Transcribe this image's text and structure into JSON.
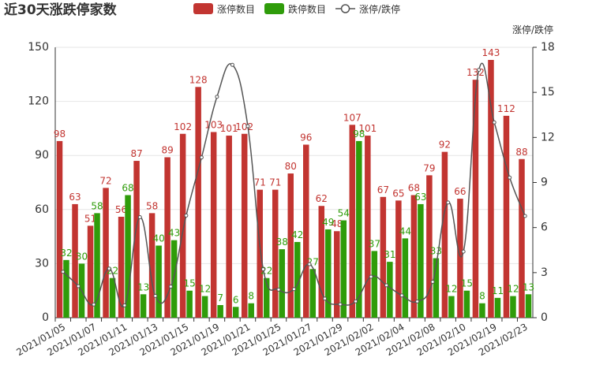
{
  "chart_data": {
    "type": "bar-line",
    "title": "近30天涨跌停家数",
    "y2_label": "涨停/跌停",
    "categories": [
      "2021/01/05",
      null,
      "2021/01/07",
      null,
      "2021/01/11",
      null,
      "2021/01/13",
      null,
      "2021/01/15",
      null,
      "2021/01/19",
      null,
      "2021/01/21",
      null,
      "2021/01/25",
      null,
      "2021/01/27",
      null,
      "2021/01/29",
      null,
      "2021/02/02",
      null,
      "2021/02/04",
      null,
      "2021/02/08",
      null,
      "2021/02/10",
      null,
      "2021/02/19",
      null,
      "2021/02/23"
    ],
    "series": [
      {
        "name": "涨停数目",
        "type": "bar",
        "color": "#c23531",
        "values": [
          98,
          63,
          51,
          72,
          56,
          87,
          58,
          89,
          102,
          128,
          103,
          101,
          102,
          71,
          71,
          80,
          96,
          62,
          48,
          107,
          101,
          67,
          65,
          68,
          79,
          92,
          66,
          132,
          143,
          112,
          88
        ]
      },
      {
        "name": "跌停数目",
        "type": "bar",
        "color": "#2f9c0a",
        "values": [
          32,
          30,
          58,
          22,
          68,
          13,
          40,
          43,
          15,
          12,
          7,
          6,
          8,
          22,
          38,
          42,
          27,
          49,
          54,
          98,
          37,
          31,
          44,
          63,
          33,
          12,
          15,
          8,
          11,
          12,
          13
        ]
      },
      {
        "name": "涨停/跌停",
        "type": "line",
        "axis": "y2",
        "color": "#555555",
        "values": [
          3.06,
          2.1,
          0.88,
          3.27,
          0.82,
          6.69,
          1.45,
          2.07,
          6.8,
          10.67,
          14.71,
          16.83,
          12.75,
          3.23,
          1.87,
          1.9,
          3.56,
          1.27,
          0.89,
          1.09,
          2.73,
          2.16,
          1.48,
          1.08,
          2.39,
          7.67,
          4.4,
          16.5,
          13,
          9.33,
          6.77
        ]
      }
    ],
    "ylim": [
      0,
      150
    ],
    "yticks": [
      0,
      30,
      60,
      90,
      120,
      150
    ],
    "y2lim": [
      0,
      18
    ],
    "y2ticks": [
      0,
      3,
      6,
      9,
      12,
      15,
      18
    ],
    "grid": true
  }
}
